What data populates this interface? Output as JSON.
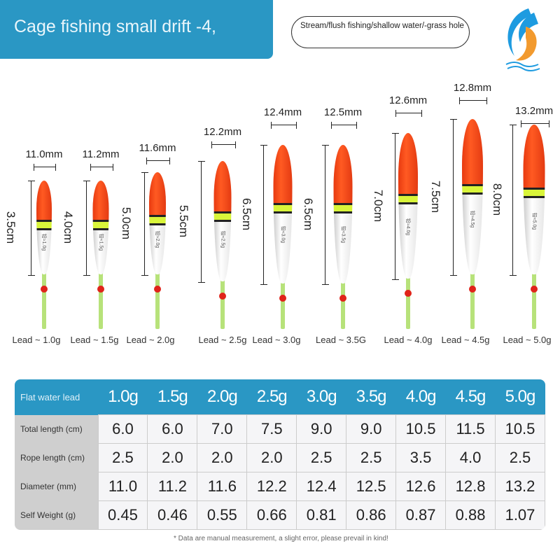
{
  "header": {
    "title": "Cage fishing small drift -4,",
    "usage": "Stream/flush fishing/shallow water/-grass hole"
  },
  "colors": {
    "banner": "#2a97c4",
    "float_top": "#ff5a22",
    "float_band": "#d9f53a",
    "stem": "#b7e27a",
    "bead": "#e0241a"
  },
  "logo": {
    "icon": "fish-wave-logo"
  },
  "floats": [
    {
      "diameter": "11.0mm",
      "height": "3.5cm",
      "lead": "Lead ~ 1.0g",
      "mark": "铅≈1.0g"
    },
    {
      "diameter": "11.2mm",
      "height": "4.0cm",
      "lead": "Lead ~ 1.5g",
      "mark": "铅≈1.5g"
    },
    {
      "diameter": "11.6mm",
      "height": "5.0cm",
      "lead": "Lead ~ 2.0g",
      "mark": "铅≈2.0g"
    },
    {
      "diameter": "12.2mm",
      "height": "5.5cm",
      "lead": "Lead ~ 2.5g",
      "mark": "铅≈2.5g"
    },
    {
      "diameter": "12.4mm",
      "height": "6.5cm",
      "lead": "Lead ~ 3.0g",
      "mark": "铅≈3.0g"
    },
    {
      "diameter": "12.5mm",
      "height": "6.5cm",
      "lead": "Lead ~ 3.5G",
      "mark": "铅≈3.5g"
    },
    {
      "diameter": "12.6mm",
      "height": "7.0cm",
      "lead": "Lead ~ 4.0g",
      "mark": "铅≈4.0g"
    },
    {
      "diameter": "12.8mm",
      "height": "7.5cm",
      "lead": "Lead ~ 4.5g",
      "mark": "铅≈4.5g"
    },
    {
      "diameter": "13.2mm",
      "height": "8.0cm",
      "lead": "Lead ~ 5.0g",
      "mark": "铅≈5.0g"
    }
  ],
  "table": {
    "header": [
      "Flat water lead",
      "1.0g",
      "1.5g",
      "2.0g",
      "2.5g",
      "3.0g",
      "3.5g",
      "4.0g",
      "4.5g",
      "5.0g"
    ],
    "rows": [
      [
        "Total length (cm)",
        "6.0",
        "6.0",
        "7.0",
        "7.5",
        "9.0",
        "9.0",
        "10.5",
        "11.5",
        "10.5"
      ],
      [
        "Rope length (cm)",
        "2.5",
        "2.0",
        "2.0",
        "2.0",
        "2.5",
        "2.5",
        "3.5",
        "4.0",
        "2.5"
      ],
      [
        "Diameter (mm)",
        "11.0",
        "11.2",
        "11.6",
        "12.2",
        "12.4",
        "12.5",
        "12.6",
        "12.8",
        "13.2"
      ],
      [
        "Self Weight (g)",
        "0.45",
        "0.46",
        "0.55",
        "0.66",
        "0.81",
        "0.86",
        "0.87",
        "0.88",
        "1.07"
      ]
    ]
  },
  "note": "* Data are manual measurement, a slight error, please prevail in kind!"
}
